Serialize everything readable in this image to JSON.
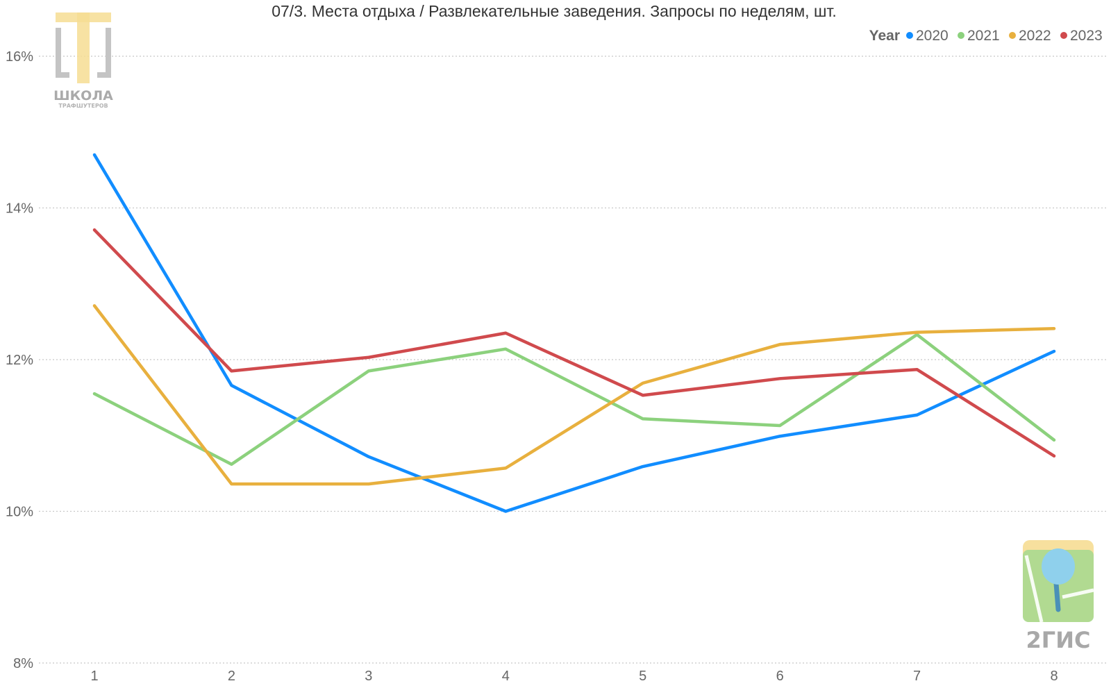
{
  "chart_data": {
    "type": "line",
    "title": "07/3. Места отдыха / Развлекательные заведения. Запросы по неделям, шт.",
    "xlabel": "",
    "ylabel": "",
    "x": [
      1,
      2,
      3,
      4,
      5,
      6,
      7,
      8
    ],
    "x_tick_labels": [
      "1",
      "2",
      "3",
      "4",
      "5",
      "6",
      "7",
      "8"
    ],
    "ylim": [
      8,
      16
    ],
    "y_ticks": [
      8,
      10,
      12,
      14,
      16
    ],
    "y_tick_labels": [
      "8%",
      "10%",
      "12%",
      "14%",
      "16%"
    ],
    "grid": "horizontal dotted",
    "legend": {
      "placement": "top-right",
      "title": "Year"
    },
    "series": [
      {
        "name": "2020",
        "color": "#118DFF",
        "values": [
          14.7,
          11.66,
          10.72,
          10.0,
          10.59,
          10.99,
          11.27,
          12.11
        ]
      },
      {
        "name": "2021",
        "color": "#8CD17D",
        "values": [
          11.55,
          10.62,
          11.85,
          12.14,
          11.22,
          11.13,
          12.33,
          10.94
        ]
      },
      {
        "name": "2022",
        "color": "#E8B03E",
        "values": [
          12.71,
          10.36,
          10.36,
          10.57,
          11.69,
          12.2,
          12.36,
          12.41
        ]
      },
      {
        "name": "2023",
        "color": "#D04A4D",
        "values": [
          13.71,
          11.85,
          12.03,
          12.35,
          11.53,
          11.75,
          11.87,
          10.73
        ]
      }
    ]
  },
  "logos": {
    "school": {
      "line1": "ШКОЛА",
      "line2": "ТРАФШУТЕРОВ"
    },
    "gis": {
      "text": "2ГИС"
    }
  }
}
